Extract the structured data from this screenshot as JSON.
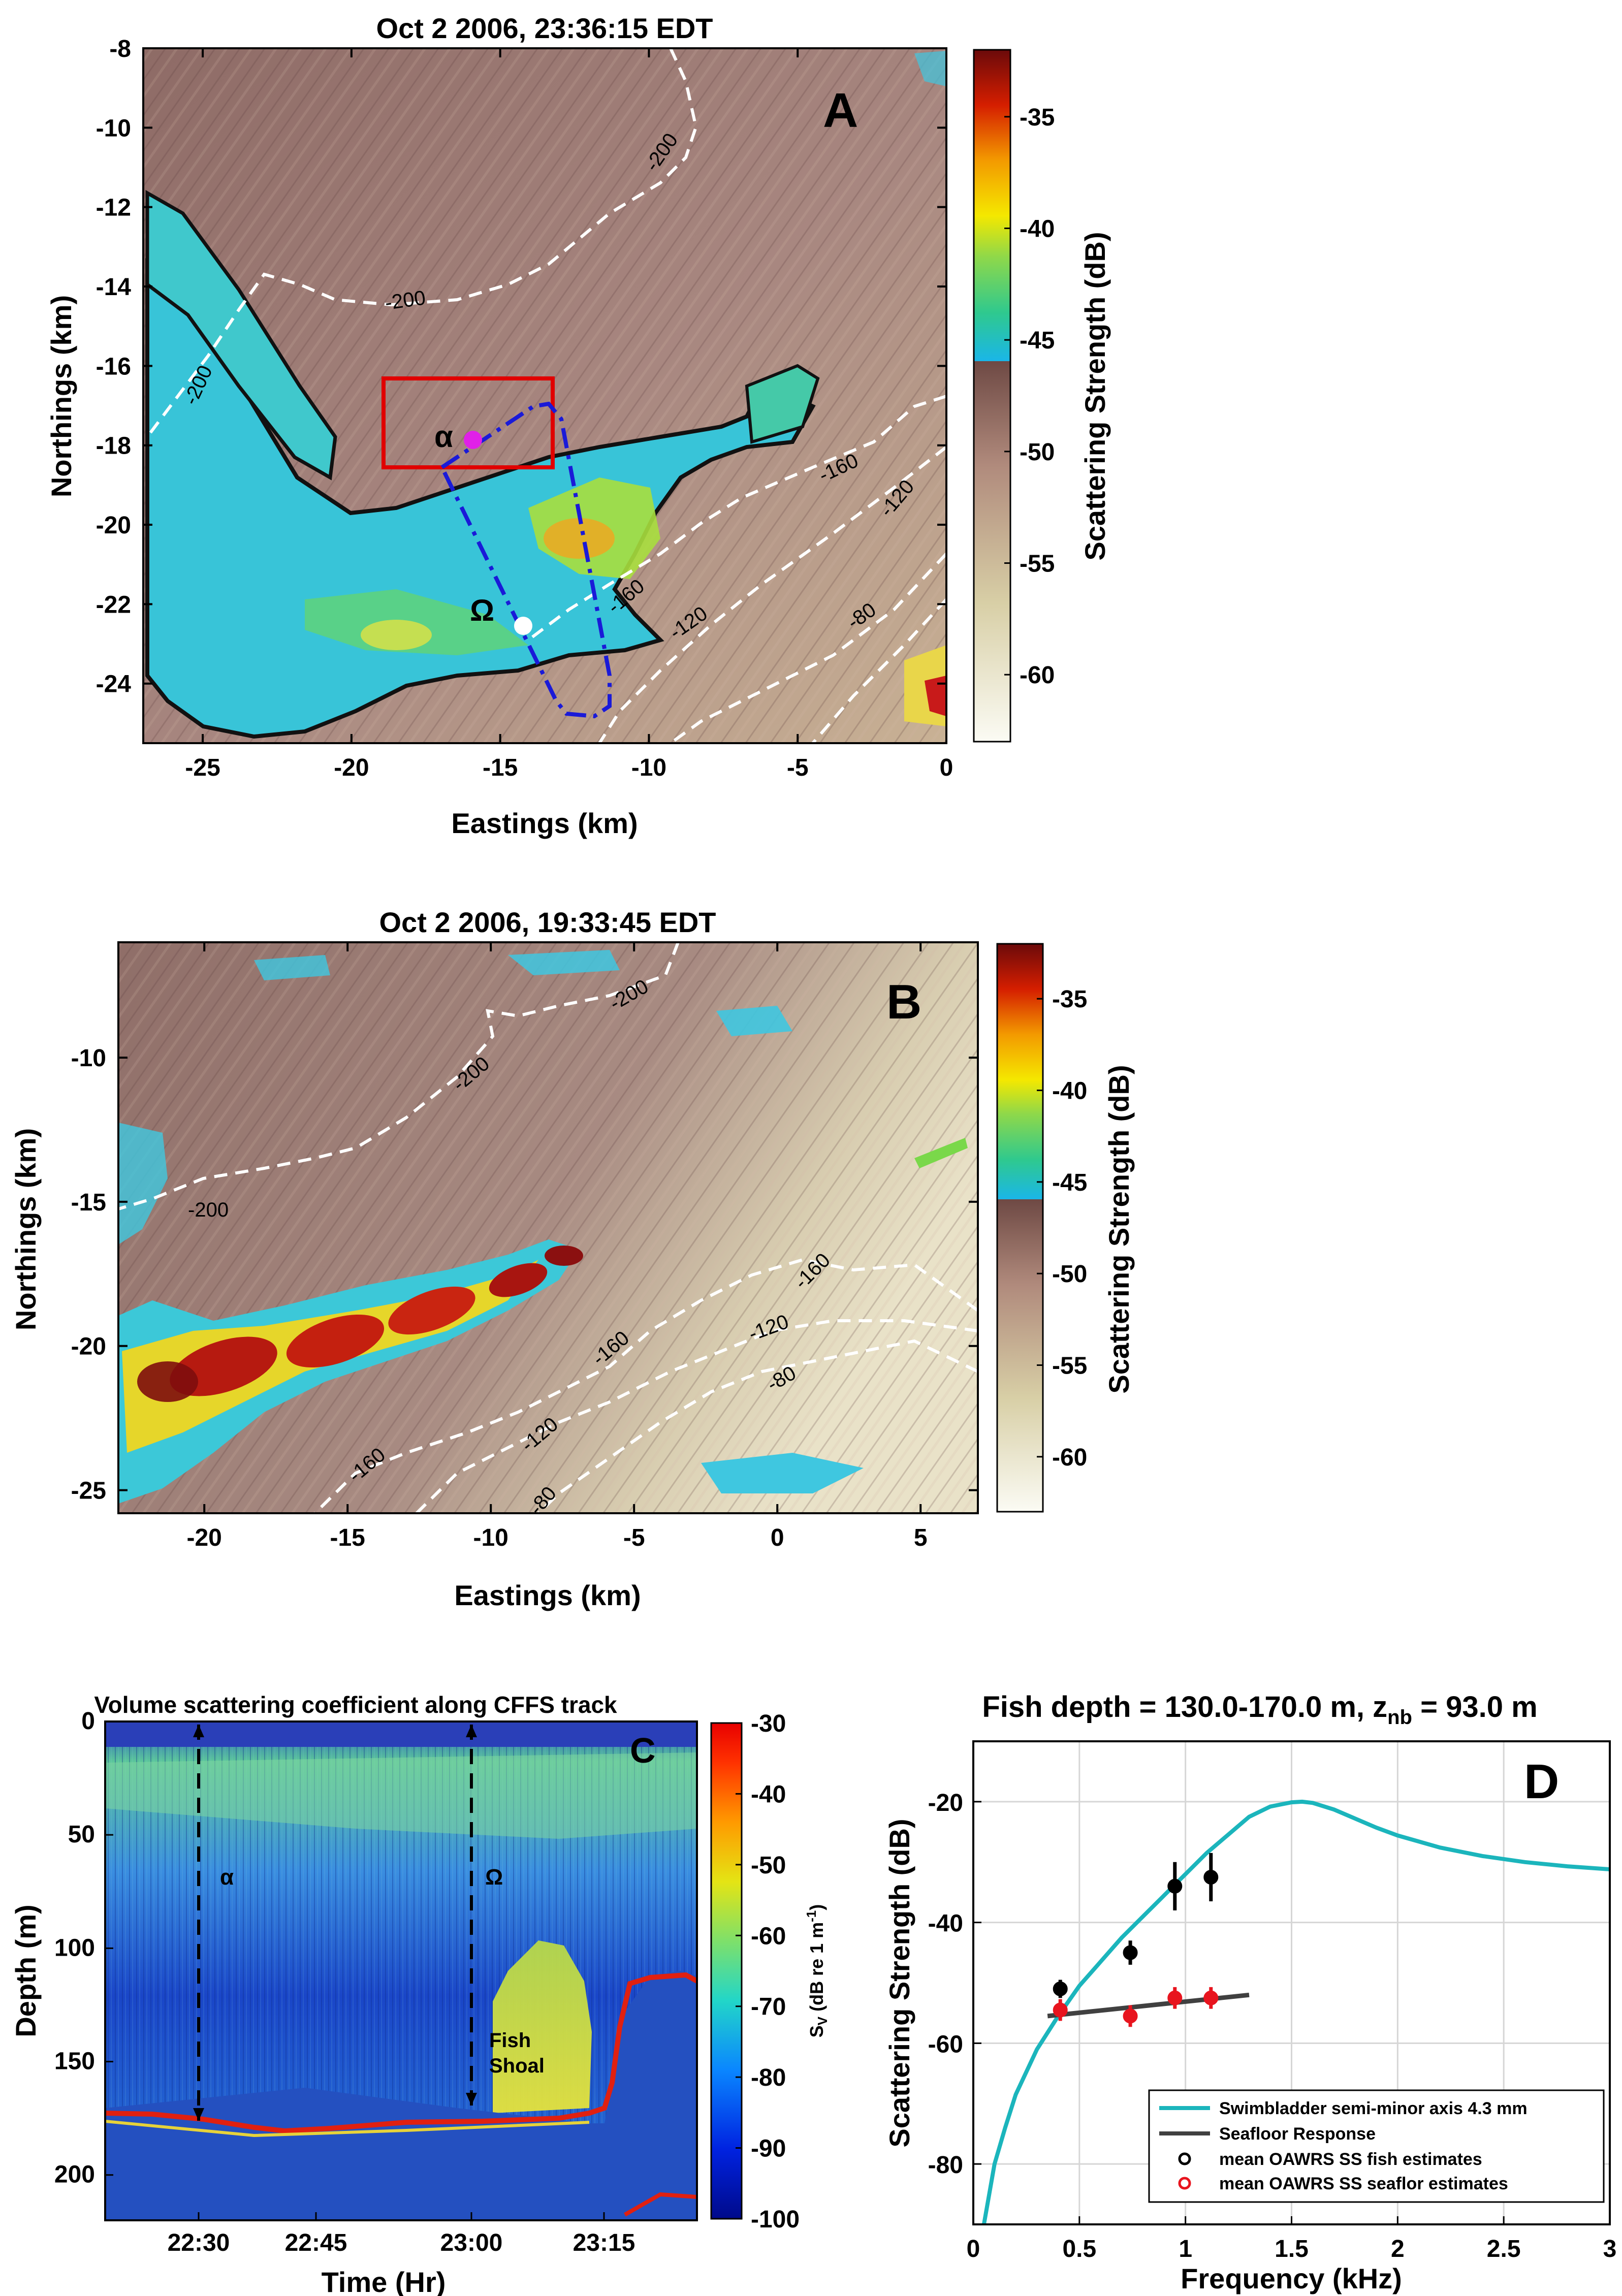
{
  "panelA": {
    "title": "Oct 2 2006, 23:36:15 EDT",
    "letter": "A",
    "xlabel": "Eastings (km)",
    "ylabel": "Northings (km)",
    "xlim": [
      -27,
      0
    ],
    "ylim": [
      -25.5,
      -8
    ],
    "xticks": [
      -25,
      -20,
      -15,
      -10,
      -5,
      0
    ],
    "yticks": [
      -24,
      -22,
      -20,
      -18,
      -16,
      -14,
      -12,
      -10,
      -8
    ],
    "contour_labels": [
      "-200",
      "-200",
      "-200",
      "-160",
      "-120",
      "-120",
      "-80",
      "-160"
    ],
    "marker_alpha": "α",
    "marker_omega": "Ω",
    "colorbar_label": "Scattering Strength (dB)",
    "colorbar_ticks": [
      -35,
      -40,
      -45,
      -50,
      -55,
      -60
    ],
    "colorbar_range": [
      -63,
      -32
    ]
  },
  "panelB": {
    "title": "Oct 2 2006, 19:33:45 EDT",
    "letter": "B",
    "xlabel": "Eastings (km)",
    "ylabel": "Northings (km)",
    "xlim": [
      -23,
      7
    ],
    "ylim": [
      -25.8,
      -6
    ],
    "xticks": [
      -20,
      -15,
      -10,
      -5,
      0,
      5
    ],
    "yticks": [
      -25,
      -20,
      -15,
      -10
    ],
    "contour_labels": [
      "-200",
      "-200",
      "-200",
      "-160",
      "-160",
      "-120",
      "-120",
      "-80",
      "-160",
      "-80"
    ],
    "colorbar_label": "Scattering Strength (dB)",
    "colorbar_ticks": [
      -35,
      -40,
      -45,
      -50,
      -55,
      -60
    ],
    "colorbar_range": [
      -63,
      -32
    ]
  },
  "panelC": {
    "title": "Volume scattering coefficient along CFFS track",
    "letter": "C",
    "xlabel": "Time (Hr)",
    "ylabel": "Depth (m)",
    "xticks": [
      "22:30",
      "22:45",
      "23:00",
      "23:15"
    ],
    "yticks": [
      0,
      50,
      100,
      150,
      200
    ],
    "marker_alpha": "α",
    "marker_omega": "Ω",
    "annotation_line1": "Fish",
    "annotation_line2": "Shoal",
    "colorbar_label_main": "S",
    "colorbar_label_sub": "V",
    "colorbar_label_rest": " (dB re 1 m",
    "colorbar_label_exp": "-1",
    "colorbar_label_end": ")",
    "colorbar_ticks": [
      -30,
      -40,
      -50,
      -60,
      -70,
      -80,
      -90,
      -100
    ]
  },
  "panelD": {
    "title_main": "Fish depth = 130.0-170.0 m, z",
    "title_sub": "nb",
    "title_end": " = 93.0 m",
    "letter": "D"
  },
  "chart_data": {
    "type": "line",
    "title": "Fish depth = 130.0-170.0 m, znb = 93.0 m",
    "xlabel": "Frequency (kHz)",
    "ylabel": "Scattering Strength (dB)",
    "xlim": [
      0,
      3
    ],
    "ylim": [
      -90,
      -10
    ],
    "xticks": [
      0,
      0.5,
      1,
      1.5,
      2,
      2.5,
      3
    ],
    "yticks": [
      -20,
      -40,
      -60,
      -80
    ],
    "grid": true,
    "legend_position": "bottom-right",
    "series": [
      {
        "name": "Swimbladder semi-minor axis 4.3 mm",
        "kind": "line",
        "color": "#1BB5BC",
        "x": [
          0.05,
          0.1,
          0.15,
          0.2,
          0.3,
          0.4,
          0.5,
          0.6,
          0.7,
          0.8,
          0.9,
          1.0,
          1.1,
          1.2,
          1.3,
          1.4,
          1.5,
          1.55,
          1.6,
          1.7,
          1.8,
          1.9,
          2.0,
          2.2,
          2.4,
          2.6,
          2.8,
          3.0
        ],
        "y": [
          -90,
          -80,
          -74,
          -68.5,
          -61,
          -55.5,
          -50.5,
          -46.5,
          -42.5,
          -39,
          -35.5,
          -32,
          -28.5,
          -25.5,
          -22.5,
          -20.8,
          -20.1,
          -20.0,
          -20.2,
          -21.3,
          -22.8,
          -24.3,
          -25.6,
          -27.6,
          -29,
          -30,
          -30.7,
          -31.2
        ]
      },
      {
        "name": "Seafloor Response",
        "kind": "line",
        "color": "#404040",
        "x": [
          0.35,
          1.3
        ],
        "y": [
          -55.5,
          -52
        ]
      },
      {
        "name": "mean OAWRS SS fish estimates",
        "kind": "points",
        "color": "#000000",
        "x": [
          0.41,
          0.74,
          0.95,
          1.12
        ],
        "y": [
          -51,
          -45,
          -34,
          -32.5
        ],
        "err": [
          1.5,
          2,
          4,
          4
        ]
      },
      {
        "name": "mean OAWRS SS seaflor estimates",
        "kind": "points",
        "color": "#E8141E",
        "x": [
          0.41,
          0.74,
          0.95,
          1.12
        ],
        "y": [
          -54.5,
          -55.5,
          -52.5,
          -52.5
        ],
        "err": [
          1.8,
          1.8,
          1.8,
          1.8
        ]
      }
    ]
  }
}
